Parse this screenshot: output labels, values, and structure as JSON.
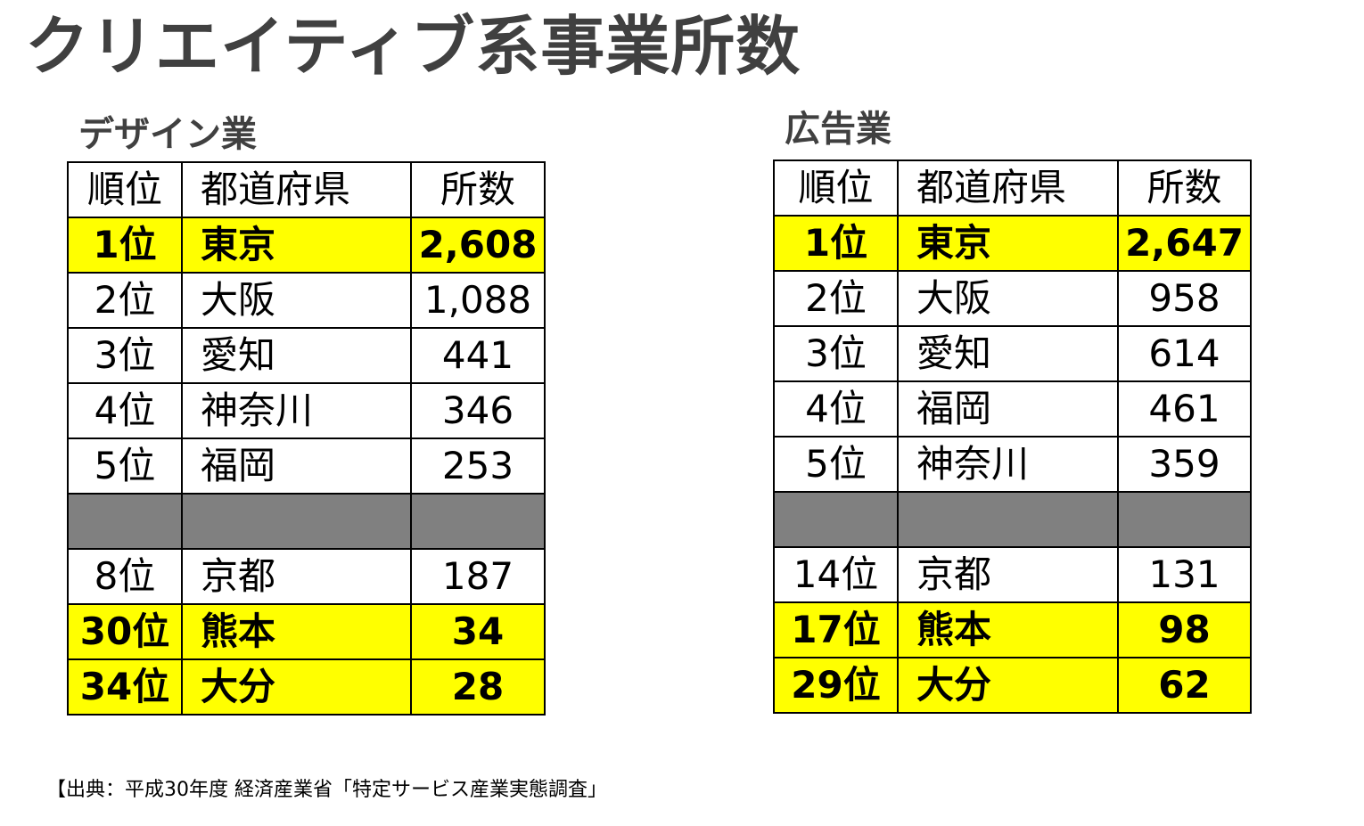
{
  "title": "クリエイティブ系事業所数",
  "design": {
    "title": "デザイン業",
    "headers": [
      "順位",
      "都道府県",
      "所数"
    ],
    "rows": [
      {
        "rank": "1位",
        "pref": "東京",
        "count": "2,608"
      },
      {
        "rank": "2位",
        "pref": "大阪",
        "count": "1,088"
      },
      {
        "rank": "3位",
        "pref": "愛知",
        "count": "441"
      },
      {
        "rank": "4位",
        "pref": "神奈川",
        "count": "346"
      },
      {
        "rank": "5位",
        "pref": "福岡",
        "count": "253"
      },
      {
        "rank": "8位",
        "pref": "京都",
        "count": "187"
      },
      {
        "rank": "30位",
        "pref": "熊本",
        "count": "34"
      },
      {
        "rank": "34位",
        "pref": "大分",
        "count": "28"
      }
    ]
  },
  "advertising": {
    "title": "広告業",
    "headers": [
      "順位",
      "都道府県",
      "所数"
    ],
    "rows": [
      {
        "rank": "1位",
        "pref": "東京",
        "count": "2,647"
      },
      {
        "rank": "2位",
        "pref": "大阪",
        "count": "958"
      },
      {
        "rank": "3位",
        "pref": "愛知",
        "count": "614"
      },
      {
        "rank": "4位",
        "pref": "福岡",
        "count": "461"
      },
      {
        "rank": "5位",
        "pref": "神奈川",
        "count": "359"
      },
      {
        "rank": "14位",
        "pref": "京都",
        "count": "131"
      },
      {
        "rank": "17位",
        "pref": "熊本",
        "count": "98"
      },
      {
        "rank": "29位",
        "pref": "大分",
        "count": "62"
      }
    ]
  },
  "source": "【出典：平成30年度 経済産業省「特定サービス産業実態調査」",
  "colors": {
    "highlight": "#ffff00",
    "separator": "#808080",
    "title_text": "#404040"
  }
}
